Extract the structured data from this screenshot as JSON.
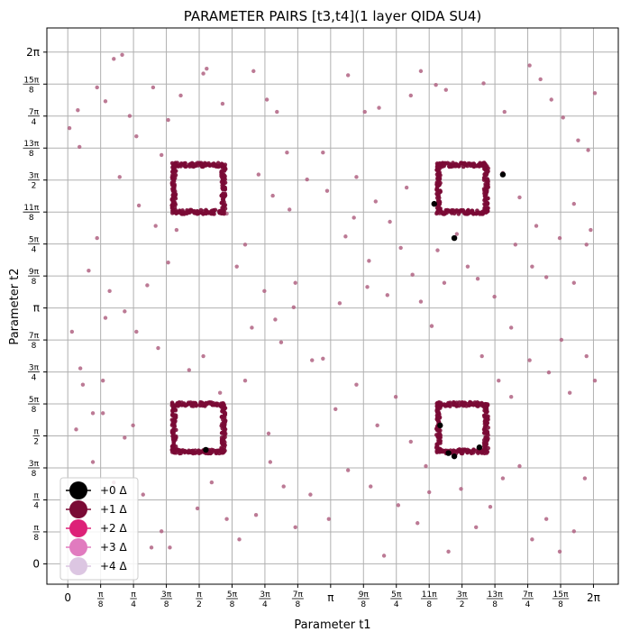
{
  "chart_data": {
    "type": "scatter",
    "title": "PARAMETER PAIRS [t3,t4](1 layer QIDA SU4)",
    "xlabel": "Parameter t1",
    "ylabel": "Parameter t2",
    "xlim": [
      -0.25,
      6.58
    ],
    "ylim": [
      -0.25,
      6.58
    ],
    "grid": true,
    "legend_position": "lower-left",
    "ticks": [
      {
        "value": 0,
        "label": "0"
      },
      {
        "value": 0.3927,
        "num": "π",
        "den": "8"
      },
      {
        "value": 0.7854,
        "num": "π",
        "den": "4"
      },
      {
        "value": 1.1781,
        "num": "3π",
        "den": "8"
      },
      {
        "value": 1.5708,
        "num": "π",
        "den": "2"
      },
      {
        "value": 1.9635,
        "num": "5π",
        "den": "8"
      },
      {
        "value": 2.3562,
        "num": "3π",
        "den": "4"
      },
      {
        "value": 2.7489,
        "num": "7π",
        "den": "8"
      },
      {
        "value": 3.1416,
        "label": "π"
      },
      {
        "value": 3.5343,
        "num": "9π",
        "den": "8"
      },
      {
        "value": 3.927,
        "num": "5π",
        "den": "4"
      },
      {
        "value": 4.3197,
        "num": "11π",
        "den": "8"
      },
      {
        "value": 4.7124,
        "num": "3π",
        "den": "2"
      },
      {
        "value": 5.1051,
        "num": "13π",
        "den": "8"
      },
      {
        "value": 5.4978,
        "num": "7π",
        "den": "4"
      },
      {
        "value": 5.8905,
        "num": "15π",
        "den": "8"
      },
      {
        "value": 6.2832,
        "label": "2π"
      }
    ],
    "legend": [
      {
        "label": "+0 Δ",
        "color": "#000000"
      },
      {
        "label": "+1 Δ",
        "color": "#7a0a35"
      },
      {
        "label": "+2 Δ",
        "color": "#dd2178"
      },
      {
        "label": "+3 Δ",
        "color": "#e17bbf"
      },
      {
        "label": "+4 Δ",
        "color": "#dcc6e2"
      }
    ],
    "colors": {
      "plus0": "#000000",
      "plus1": "#7a0a35",
      "plus1_sparse": "#b06382",
      "grid": "#b0b0b0"
    },
    "series": [
      {
        "name": "+1 Δ",
        "description_kind": "dense square outlines",
        "squares": [
          {
            "x0": 1.27,
            "x1": 1.86,
            "y0": 4.32,
            "y1": 4.9
          },
          {
            "x0": 4.43,
            "x1": 5.0,
            "y0": 4.32,
            "y1": 4.9
          },
          {
            "x0": 1.27,
            "x1": 1.86,
            "y0": 1.38,
            "y1": 1.96
          },
          {
            "x0": 4.43,
            "x1": 5.0,
            "y0": 1.38,
            "y1": 1.96
          }
        ]
      },
      {
        "name": "+1 Δ",
        "description_kind": "sparse points",
        "points": [
          [
            0.02,
            5.35
          ],
          [
            0.14,
            5.12
          ],
          [
            0.12,
            5.57
          ],
          [
            0.35,
            5.85
          ],
          [
            0.45,
            5.68
          ],
          [
            0.55,
            6.2
          ],
          [
            0.65,
            6.25
          ],
          [
            0.74,
            5.5
          ],
          [
            0.82,
            5.25
          ],
          [
            1.02,
            5.85
          ],
          [
            1.12,
            5.02
          ],
          [
            1.2,
            5.45
          ],
          [
            1.35,
            5.75
          ],
          [
            1.62,
            6.02
          ],
          [
            1.66,
            6.08
          ],
          [
            1.85,
            5.65
          ],
          [
            2.22,
            6.05
          ],
          [
            2.38,
            5.7
          ],
          [
            2.5,
            5.55
          ],
          [
            2.62,
            5.05
          ],
          [
            2.86,
            4.72
          ],
          [
            3.05,
            5.05
          ],
          [
            3.35,
            6.0
          ],
          [
            3.55,
            5.55
          ],
          [
            3.72,
            5.6
          ],
          [
            4.1,
            5.75
          ],
          [
            4.22,
            6.05
          ],
          [
            4.4,
            5.88
          ],
          [
            4.52,
            5.82
          ],
          [
            4.97,
            5.9
          ],
          [
            5.22,
            5.55
          ],
          [
            5.52,
            6.12
          ],
          [
            5.65,
            5.95
          ],
          [
            5.78,
            5.7
          ],
          [
            5.92,
            5.48
          ],
          [
            6.1,
            5.2
          ],
          [
            6.22,
            5.08
          ],
          [
            6.3,
            5.78
          ],
          [
            0.25,
            3.6
          ],
          [
            0.35,
            4.0
          ],
          [
            0.5,
            3.35
          ],
          [
            0.68,
            3.1
          ],
          [
            0.82,
            2.85
          ],
          [
            0.95,
            3.42
          ],
          [
            1.08,
            2.65
          ],
          [
            1.2,
            3.7
          ],
          [
            1.3,
            4.1
          ],
          [
            1.9,
            4.3
          ],
          [
            2.02,
            3.65
          ],
          [
            2.12,
            3.92
          ],
          [
            2.35,
            3.35
          ],
          [
            2.48,
            3.0
          ],
          [
            2.55,
            2.72
          ],
          [
            2.7,
            3.15
          ],
          [
            2.72,
            3.45
          ],
          [
            2.92,
            2.5
          ],
          [
            3.05,
            2.52
          ],
          [
            3.32,
            4.02
          ],
          [
            3.42,
            4.25
          ],
          [
            3.6,
            3.72
          ],
          [
            3.82,
            3.3
          ],
          [
            3.98,
            3.88
          ],
          [
            4.12,
            3.55
          ],
          [
            4.22,
            3.22
          ],
          [
            4.35,
            2.92
          ],
          [
            4.5,
            3.45
          ],
          [
            4.65,
            4.05
          ],
          [
            4.78,
            3.65
          ],
          [
            4.9,
            3.5
          ],
          [
            5.1,
            3.28
          ],
          [
            5.35,
            3.92
          ],
          [
            5.55,
            3.65
          ],
          [
            5.72,
            3.52
          ],
          [
            5.88,
            4.0
          ],
          [
            6.05,
            3.45
          ],
          [
            6.2,
            3.92
          ],
          [
            0.18,
            2.2
          ],
          [
            0.3,
            1.25
          ],
          [
            0.42,
            1.85
          ],
          [
            0.55,
            1.0
          ],
          [
            0.68,
            1.55
          ],
          [
            0.78,
            1.7
          ],
          [
            0.9,
            0.85
          ],
          [
            1.0,
            0.2
          ],
          [
            1.12,
            0.4
          ],
          [
            1.22,
            0.2
          ],
          [
            1.55,
            0.68
          ],
          [
            1.72,
            1.0
          ],
          [
            1.9,
            0.55
          ],
          [
            2.05,
            0.3
          ],
          [
            2.25,
            0.6
          ],
          [
            2.42,
            1.25
          ],
          [
            2.58,
            0.95
          ],
          [
            2.72,
            0.45
          ],
          [
            2.9,
            0.85
          ],
          [
            3.12,
            0.55
          ],
          [
            3.35,
            1.15
          ],
          [
            3.62,
            0.95
          ],
          [
            3.78,
            0.1
          ],
          [
            3.95,
            0.72
          ],
          [
            4.18,
            0.5
          ],
          [
            4.32,
            0.88
          ],
          [
            4.55,
            0.15
          ],
          [
            4.7,
            0.92
          ],
          [
            4.88,
            0.45
          ],
          [
            5.05,
            0.7
          ],
          [
            5.2,
            1.05
          ],
          [
            5.4,
            1.2
          ],
          [
            5.55,
            0.3
          ],
          [
            5.72,
            0.55
          ],
          [
            5.88,
            0.15
          ],
          [
            6.05,
            0.4
          ],
          [
            6.18,
            1.05
          ],
          [
            6.3,
            2.25
          ],
          [
            6.2,
            2.55
          ],
          [
            6.0,
            2.1
          ],
          [
            5.75,
            2.35
          ],
          [
            5.52,
            2.5
          ],
          [
            5.3,
            2.05
          ],
          [
            5.15,
            2.25
          ],
          [
            4.95,
            2.55
          ],
          [
            0.1,
            1.65
          ],
          [
            0.3,
            1.85
          ],
          [
            0.42,
            2.25
          ],
          [
            1.45,
            2.38
          ],
          [
            1.62,
            2.55
          ],
          [
            1.82,
            2.1
          ],
          [
            2.12,
            2.25
          ],
          [
            2.4,
            1.6
          ],
          [
            3.2,
            1.9
          ],
          [
            3.45,
            2.2
          ],
          [
            3.7,
            1.7
          ],
          [
            3.92,
            2.05
          ],
          [
            4.1,
            1.5
          ],
          [
            4.28,
            1.2
          ],
          [
            0.62,
            4.75
          ],
          [
            0.85,
            4.4
          ],
          [
            1.05,
            4.15
          ],
          [
            2.28,
            4.78
          ],
          [
            2.45,
            4.52
          ],
          [
            2.65,
            4.35
          ],
          [
            3.1,
            4.58
          ],
          [
            3.45,
            4.75
          ],
          [
            3.68,
            4.45
          ],
          [
            3.85,
            4.2
          ],
          [
            4.05,
            4.62
          ],
          [
            5.2,
            4.8
          ],
          [
            5.4,
            4.5
          ],
          [
            5.6,
            4.15
          ],
          [
            6.05,
            4.42
          ],
          [
            6.25,
            4.1
          ],
          [
            0.05,
            2.85
          ],
          [
            0.15,
            2.4
          ],
          [
            0.45,
            3.02
          ],
          [
            2.2,
            2.9
          ],
          [
            3.25,
            3.2
          ],
          [
            3.58,
            3.4
          ],
          [
            4.42,
            3.85
          ],
          [
            5.3,
            2.9
          ],
          [
            5.9,
            2.75
          ]
        ]
      },
      {
        "name": "+0 Δ",
        "points": [
          [
            5.2,
            4.78
          ],
          [
            4.38,
            4.42
          ],
          [
            4.62,
            4.0
          ],
          [
            1.65,
            1.4
          ],
          [
            4.45,
            1.7
          ],
          [
            4.62,
            1.32
          ],
          [
            4.92,
            1.43
          ],
          [
            4.55,
            1.36
          ]
        ]
      }
    ]
  }
}
